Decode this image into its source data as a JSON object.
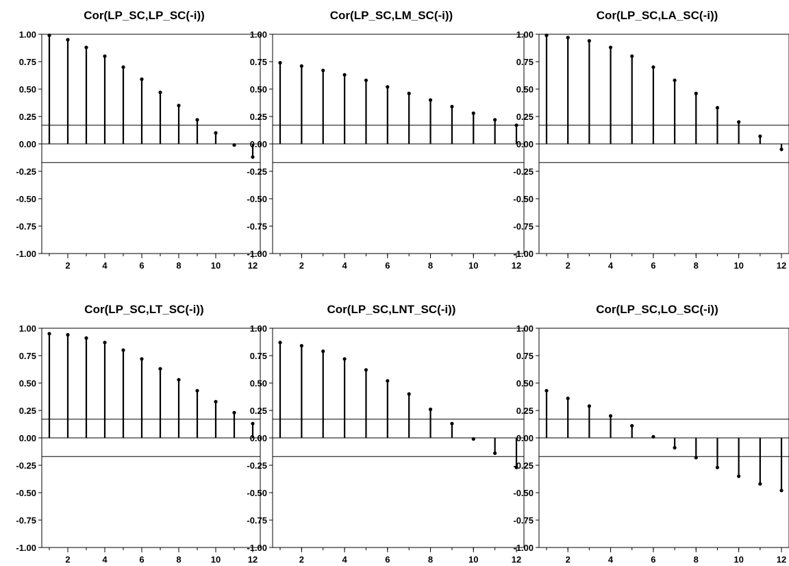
{
  "chart_data": [
    {
      "type": "stem",
      "title": "Cor(LP_SC,LP_SC(-i))",
      "x": [
        1,
        2,
        3,
        4,
        5,
        6,
        7,
        8,
        9,
        10,
        11,
        12
      ],
      "values": [
        0.99,
        0.95,
        0.88,
        0.8,
        0.7,
        0.59,
        0.47,
        0.35,
        0.22,
        0.1,
        -0.01,
        -0.12
      ],
      "confidence_band": [
        0.17,
        -0.17
      ],
      "ylim": [
        -1.0,
        1.0
      ],
      "yticks": [
        "1.00",
        "0.75",
        "0.50",
        "0.25",
        "0.00",
        "-0.25",
        "-0.50",
        "-0.75",
        "-1.00"
      ],
      "xticks": [
        "2",
        "4",
        "6",
        "8",
        "10",
        "12"
      ],
      "grid": false
    },
    {
      "type": "stem",
      "title": "Cor(LP_SC,LM_SC(-i))",
      "x": [
        1,
        2,
        3,
        4,
        5,
        6,
        7,
        8,
        9,
        10,
        11,
        12
      ],
      "values": [
        0.74,
        0.71,
        0.67,
        0.63,
        0.58,
        0.52,
        0.46,
        0.4,
        0.34,
        0.28,
        0.22,
        0.17
      ],
      "confidence_band": [
        0.17,
        -0.17
      ],
      "ylim": [
        -1.0,
        1.0
      ],
      "yticks": [
        "1.00",
        "0.75",
        "0.50",
        "0.25",
        "0.00",
        "-0.25",
        "-0.50",
        "-0.75",
        "-1.00"
      ],
      "xticks": [
        "2",
        "4",
        "6",
        "8",
        "10",
        "12"
      ],
      "grid": false
    },
    {
      "type": "stem",
      "title": "Cor(LP_SC,LA_SC(-i))",
      "x": [
        1,
        2,
        3,
        4,
        5,
        6,
        7,
        8,
        9,
        10,
        11,
        12
      ],
      "values": [
        0.99,
        0.97,
        0.94,
        0.88,
        0.8,
        0.7,
        0.58,
        0.46,
        0.33,
        0.2,
        0.07,
        -0.05
      ],
      "confidence_band": [
        0.17,
        -0.17
      ],
      "ylim": [
        -1.0,
        1.0
      ],
      "yticks": [
        "1.00",
        "0.75",
        "0.50",
        "0.25",
        "0.00",
        "-0.25",
        "-0.50",
        "-0.75",
        "-1.00"
      ],
      "xticks": [
        "2",
        "4",
        "6",
        "8",
        "10",
        "12"
      ],
      "grid": false
    },
    {
      "type": "stem",
      "title": "Cor(LP_SC,LT_SC(-i))",
      "x": [
        1,
        2,
        3,
        4,
        5,
        6,
        7,
        8,
        9,
        10,
        11,
        12
      ],
      "values": [
        0.95,
        0.94,
        0.91,
        0.87,
        0.8,
        0.72,
        0.63,
        0.53,
        0.43,
        0.33,
        0.23,
        0.13
      ],
      "confidence_band": [
        0.17,
        -0.17
      ],
      "ylim": [
        -1.0,
        1.0
      ],
      "yticks": [
        "1.00",
        "0.75",
        "0.50",
        "0.25",
        "0.00",
        "-0.25",
        "-0.50",
        "-0.75",
        "-1.00"
      ],
      "xticks": [
        "2",
        "4",
        "6",
        "8",
        "10",
        "12"
      ],
      "grid": false
    },
    {
      "type": "stem",
      "title": "Cor(LP_SC,LNT_SC(-i))",
      "x": [
        1,
        2,
        3,
        4,
        5,
        6,
        7,
        8,
        9,
        10,
        11,
        12
      ],
      "values": [
        0.87,
        0.84,
        0.79,
        0.72,
        0.62,
        0.52,
        0.4,
        0.26,
        0.13,
        -0.01,
        -0.14,
        -0.27
      ],
      "confidence_band": [
        0.17,
        -0.17
      ],
      "ylim": [
        -1.0,
        1.0
      ],
      "yticks": [
        "1.00",
        "0.75",
        "0.50",
        "0.25",
        "0.00",
        "-0.25",
        "-0.50",
        "-0.75",
        "-1.00"
      ],
      "xticks": [
        "2",
        "4",
        "6",
        "8",
        "10",
        "12"
      ],
      "grid": false
    },
    {
      "type": "stem",
      "title": "Cor(LP_SC,LO_SC(-i))",
      "x": [
        1,
        2,
        3,
        4,
        5,
        6,
        7,
        8,
        9,
        10,
        11,
        12
      ],
      "values": [
        0.43,
        0.36,
        0.29,
        0.2,
        0.11,
        0.01,
        -0.09,
        -0.18,
        -0.27,
        -0.35,
        -0.42,
        -0.48
      ],
      "confidence_band": [
        0.17,
        -0.17
      ],
      "ylim": [
        -1.0,
        1.0
      ],
      "yticks": [
        "1.00",
        "0.75",
        "0.50",
        "0.25",
        "0.00",
        "-0.25",
        "-0.50",
        "-0.75",
        "-1.00"
      ],
      "xticks": [
        "2",
        "4",
        "6",
        "8",
        "10",
        "12"
      ],
      "grid": false
    }
  ],
  "colors": {
    "background": "#ffffff",
    "ink": "#000000"
  }
}
